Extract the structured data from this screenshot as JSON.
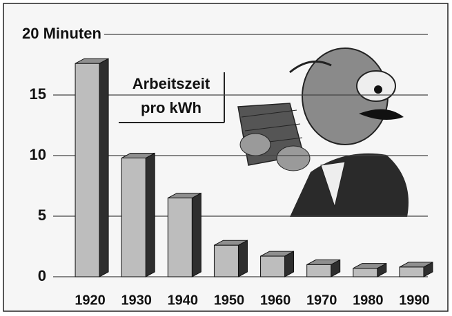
{
  "chart_data": {
    "type": "bar3d",
    "title": [
      "Arbeitszeit",
      "pro kWh"
    ],
    "categories": [
      "1920",
      "1930",
      "1940",
      "1950",
      "1960",
      "1970",
      "1980",
      "1990"
    ],
    "values": [
      17.6,
      9.8,
      6.5,
      2.6,
      1.7,
      1.0,
      0.7,
      0.8
    ],
    "colors": {
      "front": "#bdbdbd",
      "side": "#2e2e2e",
      "top": "#8f8f8f"
    },
    "ylim": [
      0,
      20
    ],
    "yticks": [
      0,
      5,
      10,
      15,
      {
        "value": 20,
        "label": "20 Minuten"
      }
    ],
    "grid": true
  }
}
